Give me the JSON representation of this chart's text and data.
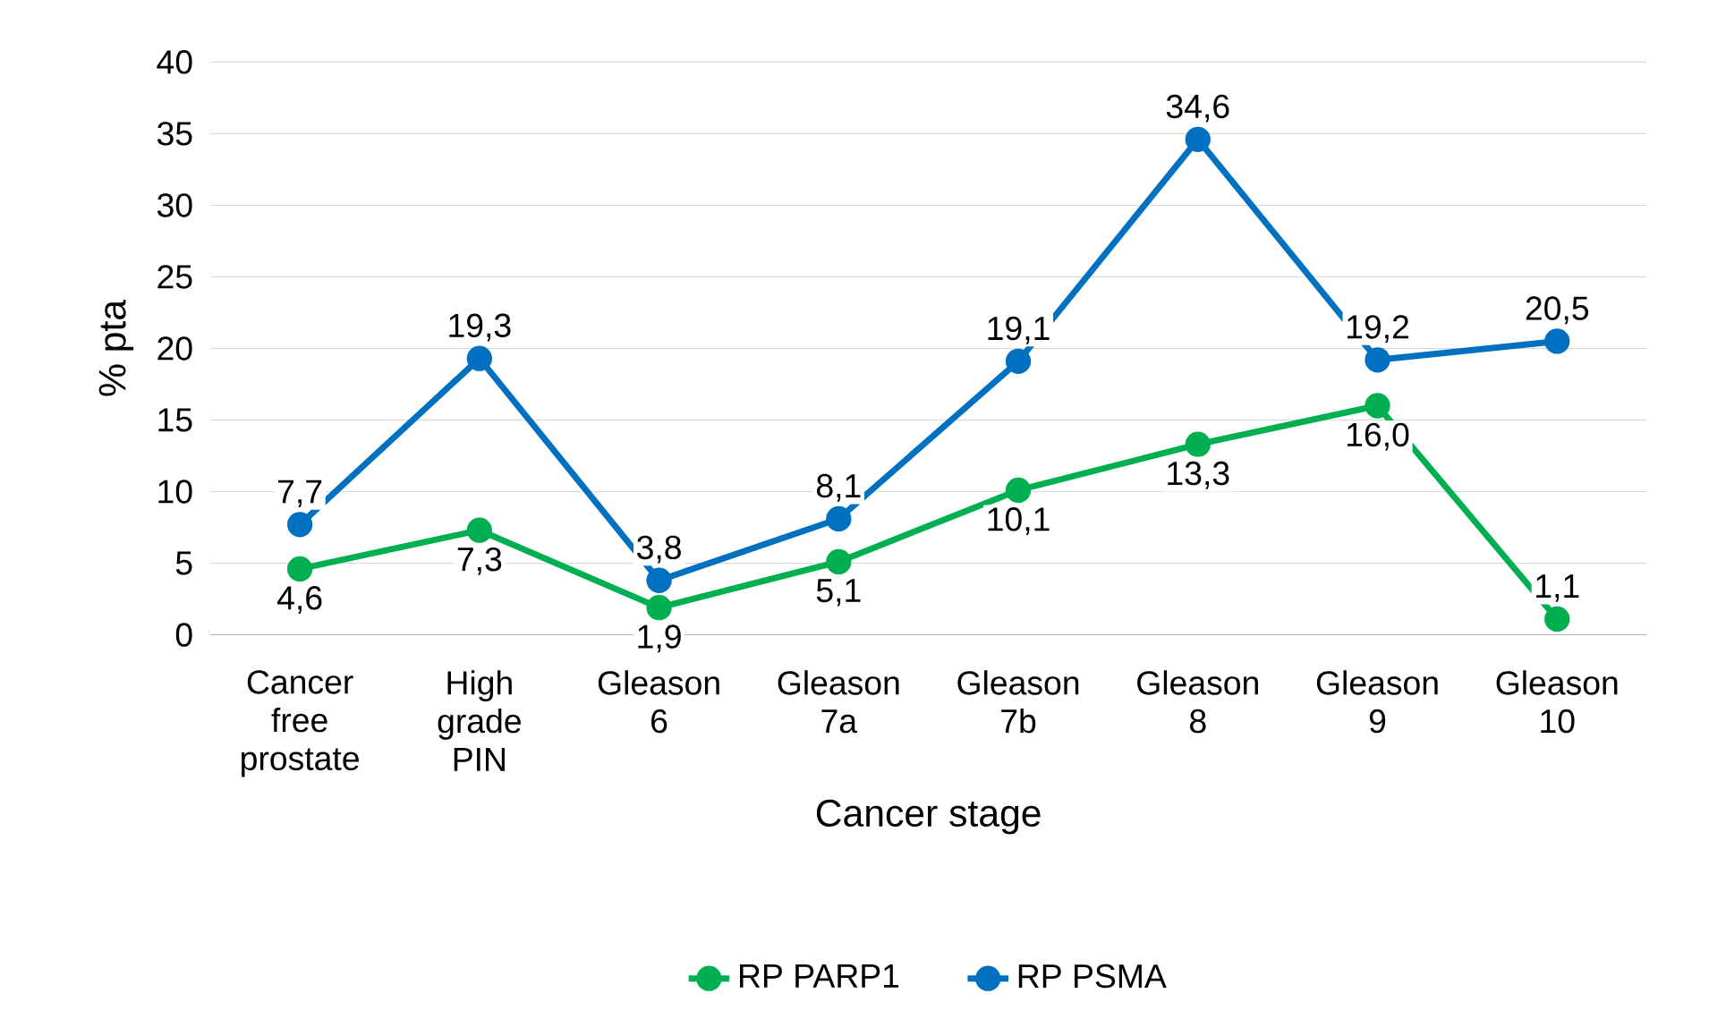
{
  "chart_data": {
    "type": "line",
    "xlabel": "Cancer stage",
    "ylabel": "% pta",
    "categories": [
      "Cancer free prostate",
      "High grade PIN",
      "Gleason 6",
      "Gleason 7a",
      "Gleason 7b",
      "Gleason 8",
      "Gleason 9",
      "Gleason 10"
    ],
    "series": [
      {
        "name": "RP PARP1",
        "color": "#00b050",
        "values": [
          4.6,
          7.3,
          1.9,
          5.1,
          10.1,
          13.3,
          16.0,
          1.1
        ],
        "value_labels": [
          "4,6",
          "7,3",
          "1,9",
          "5,1",
          "10,1",
          "13,3",
          "16,0",
          "1,1"
        ]
      },
      {
        "name": "RP PSMA",
        "color": "#0070c0",
        "values": [
          7.7,
          19.3,
          3.8,
          8.1,
          19.1,
          34.6,
          19.2,
          20.5
        ],
        "value_labels": [
          "7,7",
          "19,3",
          "3,8",
          "8,1",
          "19,1",
          "34,6",
          "19,2",
          "20,5"
        ]
      }
    ],
    "ylim": [
      0,
      40
    ],
    "yticks": [
      0,
      5,
      10,
      15,
      20,
      25,
      30,
      35,
      40
    ],
    "grid": "y",
    "legend": "bottom",
    "marker": "circle",
    "line_style": "solid"
  }
}
